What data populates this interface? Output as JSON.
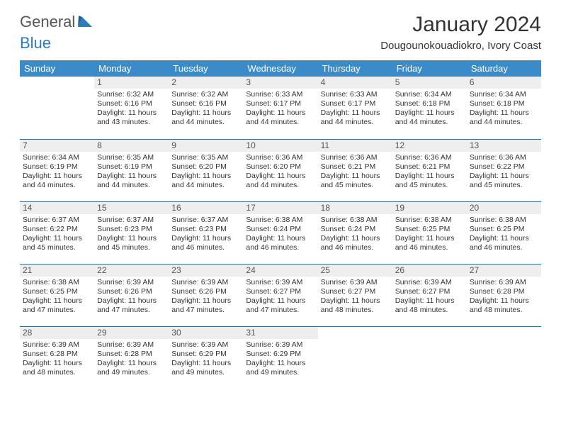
{
  "brand": {
    "part1": "General",
    "part2": "Blue"
  },
  "title": "January 2024",
  "location": "Dougounokouadiokro, Ivory Coast",
  "colors": {
    "header_bg": "#3b8bc9",
    "header_text": "#ffffff",
    "row_divider": "#3b6d99",
    "daynum_bg": "#eeeeee",
    "text": "#333333",
    "brand_gray": "#555555",
    "brand_blue": "#2f7bbf"
  },
  "weekdays": [
    "Sunday",
    "Monday",
    "Tuesday",
    "Wednesday",
    "Thursday",
    "Friday",
    "Saturday"
  ],
  "weeks": [
    [
      {
        "n": "",
        "sunrise": "",
        "sunset": "",
        "daylight": ""
      },
      {
        "n": "1",
        "sunrise": "Sunrise: 6:32 AM",
        "sunset": "Sunset: 6:16 PM",
        "daylight": "Daylight: 11 hours and 43 minutes."
      },
      {
        "n": "2",
        "sunrise": "Sunrise: 6:32 AM",
        "sunset": "Sunset: 6:16 PM",
        "daylight": "Daylight: 11 hours and 44 minutes."
      },
      {
        "n": "3",
        "sunrise": "Sunrise: 6:33 AM",
        "sunset": "Sunset: 6:17 PM",
        "daylight": "Daylight: 11 hours and 44 minutes."
      },
      {
        "n": "4",
        "sunrise": "Sunrise: 6:33 AM",
        "sunset": "Sunset: 6:17 PM",
        "daylight": "Daylight: 11 hours and 44 minutes."
      },
      {
        "n": "5",
        "sunrise": "Sunrise: 6:34 AM",
        "sunset": "Sunset: 6:18 PM",
        "daylight": "Daylight: 11 hours and 44 minutes."
      },
      {
        "n": "6",
        "sunrise": "Sunrise: 6:34 AM",
        "sunset": "Sunset: 6:18 PM",
        "daylight": "Daylight: 11 hours and 44 minutes."
      }
    ],
    [
      {
        "n": "7",
        "sunrise": "Sunrise: 6:34 AM",
        "sunset": "Sunset: 6:19 PM",
        "daylight": "Daylight: 11 hours and 44 minutes."
      },
      {
        "n": "8",
        "sunrise": "Sunrise: 6:35 AM",
        "sunset": "Sunset: 6:19 PM",
        "daylight": "Daylight: 11 hours and 44 minutes."
      },
      {
        "n": "9",
        "sunrise": "Sunrise: 6:35 AM",
        "sunset": "Sunset: 6:20 PM",
        "daylight": "Daylight: 11 hours and 44 minutes."
      },
      {
        "n": "10",
        "sunrise": "Sunrise: 6:36 AM",
        "sunset": "Sunset: 6:20 PM",
        "daylight": "Daylight: 11 hours and 44 minutes."
      },
      {
        "n": "11",
        "sunrise": "Sunrise: 6:36 AM",
        "sunset": "Sunset: 6:21 PM",
        "daylight": "Daylight: 11 hours and 45 minutes."
      },
      {
        "n": "12",
        "sunrise": "Sunrise: 6:36 AM",
        "sunset": "Sunset: 6:21 PM",
        "daylight": "Daylight: 11 hours and 45 minutes."
      },
      {
        "n": "13",
        "sunrise": "Sunrise: 6:36 AM",
        "sunset": "Sunset: 6:22 PM",
        "daylight": "Daylight: 11 hours and 45 minutes."
      }
    ],
    [
      {
        "n": "14",
        "sunrise": "Sunrise: 6:37 AM",
        "sunset": "Sunset: 6:22 PM",
        "daylight": "Daylight: 11 hours and 45 minutes."
      },
      {
        "n": "15",
        "sunrise": "Sunrise: 6:37 AM",
        "sunset": "Sunset: 6:23 PM",
        "daylight": "Daylight: 11 hours and 45 minutes."
      },
      {
        "n": "16",
        "sunrise": "Sunrise: 6:37 AM",
        "sunset": "Sunset: 6:23 PM",
        "daylight": "Daylight: 11 hours and 46 minutes."
      },
      {
        "n": "17",
        "sunrise": "Sunrise: 6:38 AM",
        "sunset": "Sunset: 6:24 PM",
        "daylight": "Daylight: 11 hours and 46 minutes."
      },
      {
        "n": "18",
        "sunrise": "Sunrise: 6:38 AM",
        "sunset": "Sunset: 6:24 PM",
        "daylight": "Daylight: 11 hours and 46 minutes."
      },
      {
        "n": "19",
        "sunrise": "Sunrise: 6:38 AM",
        "sunset": "Sunset: 6:25 PM",
        "daylight": "Daylight: 11 hours and 46 minutes."
      },
      {
        "n": "20",
        "sunrise": "Sunrise: 6:38 AM",
        "sunset": "Sunset: 6:25 PM",
        "daylight": "Daylight: 11 hours and 46 minutes."
      }
    ],
    [
      {
        "n": "21",
        "sunrise": "Sunrise: 6:38 AM",
        "sunset": "Sunset: 6:25 PM",
        "daylight": "Daylight: 11 hours and 47 minutes."
      },
      {
        "n": "22",
        "sunrise": "Sunrise: 6:39 AM",
        "sunset": "Sunset: 6:26 PM",
        "daylight": "Daylight: 11 hours and 47 minutes."
      },
      {
        "n": "23",
        "sunrise": "Sunrise: 6:39 AM",
        "sunset": "Sunset: 6:26 PM",
        "daylight": "Daylight: 11 hours and 47 minutes."
      },
      {
        "n": "24",
        "sunrise": "Sunrise: 6:39 AM",
        "sunset": "Sunset: 6:27 PM",
        "daylight": "Daylight: 11 hours and 47 minutes."
      },
      {
        "n": "25",
        "sunrise": "Sunrise: 6:39 AM",
        "sunset": "Sunset: 6:27 PM",
        "daylight": "Daylight: 11 hours and 48 minutes."
      },
      {
        "n": "26",
        "sunrise": "Sunrise: 6:39 AM",
        "sunset": "Sunset: 6:27 PM",
        "daylight": "Daylight: 11 hours and 48 minutes."
      },
      {
        "n": "27",
        "sunrise": "Sunrise: 6:39 AM",
        "sunset": "Sunset: 6:28 PM",
        "daylight": "Daylight: 11 hours and 48 minutes."
      }
    ],
    [
      {
        "n": "28",
        "sunrise": "Sunrise: 6:39 AM",
        "sunset": "Sunset: 6:28 PM",
        "daylight": "Daylight: 11 hours and 48 minutes."
      },
      {
        "n": "29",
        "sunrise": "Sunrise: 6:39 AM",
        "sunset": "Sunset: 6:28 PM",
        "daylight": "Daylight: 11 hours and 49 minutes."
      },
      {
        "n": "30",
        "sunrise": "Sunrise: 6:39 AM",
        "sunset": "Sunset: 6:29 PM",
        "daylight": "Daylight: 11 hours and 49 minutes."
      },
      {
        "n": "31",
        "sunrise": "Sunrise: 6:39 AM",
        "sunset": "Sunset: 6:29 PM",
        "daylight": "Daylight: 11 hours and 49 minutes."
      },
      {
        "n": "",
        "sunrise": "",
        "sunset": "",
        "daylight": ""
      },
      {
        "n": "",
        "sunrise": "",
        "sunset": "",
        "daylight": ""
      },
      {
        "n": "",
        "sunrise": "",
        "sunset": "",
        "daylight": ""
      }
    ]
  ]
}
